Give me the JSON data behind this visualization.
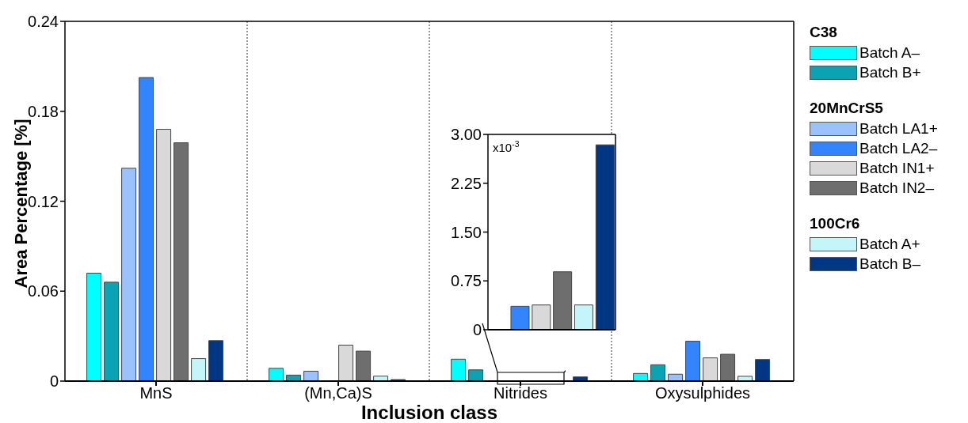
{
  "chart_data": [
    {
      "type": "bar",
      "xlabel": "Inclusion class",
      "ylabel": "Area Percentage [%]",
      "categories": [
        "MnS",
        "(Mn,Ca)S",
        "Nitrides",
        "Oxysulphides"
      ],
      "series": [
        {
          "name": "Batch A–",
          "color": "#00ffff",
          "values": [
            0.072,
            0.0085,
            0.0146,
            0.0051
          ]
        },
        {
          "name": "Batch B+",
          "color": "#0aa3b3",
          "values": [
            0.066,
            0.004,
            0.0075,
            0.0109
          ]
        },
        {
          "name": "Batch LA1+",
          "color": "#99c2ff",
          "values": [
            0.142,
            0.0066,
            0,
            0.0046
          ]
        },
        {
          "name": "Batch LA2–",
          "color": "#3385ff",
          "values": [
            0.2025,
            0,
            null,
            0.0266
          ]
        },
        {
          "name": "Batch IN1+",
          "color": "#d9d9d9",
          "values": [
            0.168,
            0.024,
            null,
            0.0155
          ]
        },
        {
          "name": "Batch IN2–",
          "color": "#6e6e6e",
          "values": [
            0.159,
            0.02,
            null,
            0.0179
          ]
        },
        {
          "name": "Batch A+",
          "color": "#c4f5f9",
          "values": [
            0.015,
            0.0033,
            null,
            0.0032
          ]
        },
        {
          "name": "Batch B–",
          "color": "#003784",
          "values": [
            0.027,
            0.001,
            0.0028,
            0.0144
          ]
        }
      ],
      "ylim": [
        0,
        0.24
      ],
      "yticks": [
        0,
        0.06,
        0.12,
        0.18,
        0.24
      ],
      "grid": "x",
      "legend": "right",
      "annotations": [
        "C38",
        "20MnCrS5",
        "100Cr6"
      ]
    },
    {
      "type": "bar",
      "categories": [
        null,
        null,
        null,
        null,
        null,
        null
      ],
      "values": [
        0,
        0.36,
        0.38,
        0.89,
        0.38,
        2.84
      ],
      "colors": [
        "#99c2ff",
        "#3385ff",
        "#d9d9d9",
        "#6e6e6e",
        "#c4f5f9",
        "#003784"
      ],
      "ylim": [
        0,
        3
      ],
      "yticks": [
        0,
        0.75,
        {
          "value": 1.5,
          "label": "1.50"
        },
        2.25,
        {
          "value": 3,
          "label": "3.00"
        }
      ],
      "tick_labels": "y",
      "annotations": [
        "x10$^{-3}$"
      ]
    }
  ]
}
